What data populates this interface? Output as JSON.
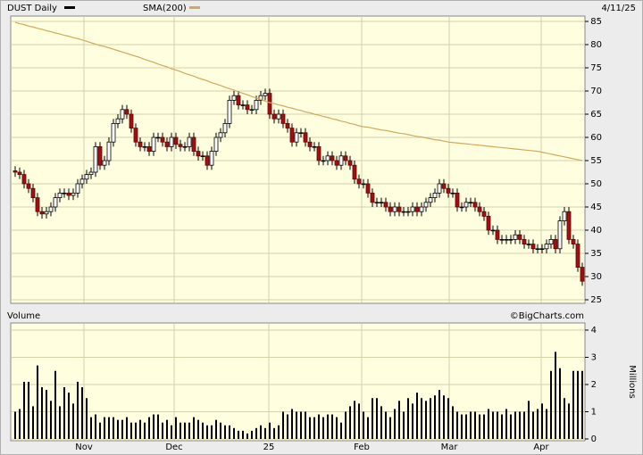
{
  "chart_data": [
    {
      "type": "candlestick",
      "title": "DUST Daily",
      "date_label": "4/11/25",
      "categories": [
        null,
        null,
        null,
        null,
        null,
        null,
        null,
        null,
        null,
        null,
        null,
        null,
        null,
        null,
        null,
        null,
        null,
        null,
        null,
        null,
        null,
        null,
        null,
        null,
        null,
        null,
        null,
        null,
        null,
        null,
        null,
        null,
        null,
        null,
        null,
        null,
        null,
        null,
        null,
        null,
        null,
        null,
        null,
        null,
        null,
        null,
        null,
        null,
        null,
        null,
        null,
        null,
        null,
        null,
        null,
        null,
        null,
        null,
        null,
        null,
        null,
        null,
        null,
        null,
        null,
        null,
        null,
        null,
        null,
        null,
        null,
        null,
        null,
        null,
        null,
        null,
        null,
        null,
        null,
        null,
        null,
        null,
        null,
        null,
        null,
        null,
        null,
        null,
        null,
        null,
        null,
        null,
        null,
        null,
        null,
        null,
        null,
        null,
        null,
        null,
        null,
        null,
        null,
        null,
        null,
        null,
        null,
        null,
        null,
        null,
        null,
        null,
        null,
        null,
        null,
        null,
        null,
        null,
        null,
        null,
        null,
        null,
        null,
        null,
        null,
        null,
        null,
        null
      ],
      "xlim": [
        -1,
        127.6
      ],
      "ylim": [
        25,
        85
      ],
      "yticks": [
        25,
        30,
        35,
        40,
        45,
        50,
        55,
        60,
        65,
        70,
        75,
        80,
        85
      ],
      "grid": true,
      "up_color": "#ffffff",
      "down_color": "#a01010",
      "series": [
        {
          "name": "DUST Daily",
          "color": "#000000",
          "open": [
            52.8,
            52.5,
            52,
            50,
            49,
            47,
            44,
            43.5,
            44,
            45,
            47,
            48,
            48,
            47.5,
            48,
            50,
            51,
            52,
            52.5,
            58,
            54,
            55,
            59,
            63,
            64,
            66,
            65,
            62,
            59,
            58,
            58,
            57,
            60,
            60,
            59,
            58,
            60,
            58.5,
            58,
            58,
            60,
            57,
            56,
            56,
            54,
            57,
            60,
            61,
            63,
            68,
            69,
            67,
            67,
            66,
            66,
            68,
            69,
            69.5,
            65,
            64,
            65,
            63,
            62,
            59,
            61,
            61,
            59,
            58,
            58,
            55,
            55,
            56,
            55,
            54,
            56,
            55,
            54,
            51,
            50,
            50,
            48,
            46,
            46,
            46,
            45,
            44,
            45,
            44,
            44,
            44,
            45,
            44,
            45,
            46,
            47,
            48,
            50,
            49,
            48,
            48,
            45,
            45,
            46,
            46,
            45,
            44,
            43,
            40,
            40,
            38,
            38,
            38,
            38,
            39,
            38,
            37,
            37,
            36,
            36,
            36,
            37,
            38,
            36,
            42,
            44,
            38,
            37,
            32
          ],
          "high": [
            53.8,
            53.5,
            53,
            51,
            50,
            48,
            45,
            45,
            46,
            48,
            49,
            49,
            49,
            49,
            51,
            52,
            53,
            53.5,
            59,
            59,
            56,
            60,
            64,
            65,
            67,
            67,
            66,
            63,
            60,
            59,
            59,
            61,
            61,
            61,
            60,
            61,
            61,
            59.5,
            59,
            61,
            61,
            58,
            57,
            57,
            58,
            61,
            62,
            64,
            69,
            70,
            70,
            68,
            68,
            67,
            69,
            70,
            70.5,
            70.5,
            66,
            66,
            66,
            64,
            63,
            62,
            62,
            62,
            60,
            59,
            59,
            56,
            57,
            57,
            56,
            57,
            57,
            56,
            55,
            52,
            51,
            51,
            49,
            47,
            47,
            47,
            46,
            46,
            46,
            45,
            45,
            46,
            46,
            46,
            47,
            48,
            49,
            51,
            51,
            50,
            49,
            49,
            46,
            47,
            47,
            47,
            46,
            45,
            44,
            41,
            41,
            39,
            39,
            39,
            40,
            40,
            39,
            38,
            38,
            37,
            37,
            38,
            39,
            39,
            43,
            45,
            45,
            39,
            38,
            33
          ],
          "low": [
            51.5,
            51,
            49,
            48,
            46,
            43,
            42.5,
            42.5,
            43,
            44,
            46,
            47,
            46.5,
            46.5,
            47,
            49,
            50,
            51,
            51.5,
            53,
            53,
            54,
            58,
            62,
            63,
            64,
            61,
            58,
            57,
            57,
            56,
            56,
            59,
            58,
            57,
            57,
            57.5,
            57,
            57,
            57,
            56,
            55,
            55,
            53,
            53,
            56,
            59,
            60,
            62,
            67,
            66,
            66,
            65,
            65,
            65,
            67,
            68,
            64,
            63,
            63,
            62,
            61,
            58,
            58,
            60,
            58,
            57,
            57,
            54,
            54,
            54,
            54,
            53,
            53,
            54,
            53,
            50,
            49,
            49,
            47,
            45,
            45,
            45,
            44,
            43,
            43,
            43,
            43,
            43,
            43,
            43,
            43,
            44,
            45,
            46,
            47,
            48,
            47,
            47,
            44,
            44,
            44,
            45,
            44,
            43,
            42,
            39,
            39,
            37,
            37,
            37,
            37,
            37,
            37,
            36,
            36,
            35,
            35,
            35,
            35,
            36,
            35,
            35,
            41,
            37,
            36,
            31,
            28
          ],
          "close": [
            52.5,
            52,
            50,
            49,
            47,
            44,
            43.5,
            44,
            45,
            47,
            48,
            48,
            47.5,
            48,
            50,
            51,
            52,
            52.5,
            58,
            54,
            55,
            59,
            63,
            64,
            66,
            65,
            62,
            59,
            58,
            58,
            57,
            60,
            60,
            59,
            58,
            60,
            58.5,
            58,
            58,
            60,
            57,
            56,
            56,
            54,
            57,
            60,
            61,
            63,
            68,
            69,
            67,
            67,
            66,
            66,
            68,
            69,
            69.5,
            65,
            64,
            65,
            63,
            62,
            59,
            61,
            61,
            59,
            58,
            58,
            55,
            55,
            56,
            55,
            54,
            56,
            55,
            54,
            51,
            50,
            50,
            48,
            46,
            46,
            46,
            45,
            44,
            45,
            44,
            44,
            44,
            45,
            44,
            45,
            46,
            47,
            48,
            50,
            49,
            48,
            48,
            45,
            45,
            46,
            46,
            45,
            44,
            43,
            40,
            40,
            38,
            38,
            38,
            38,
            39,
            38,
            37,
            37,
            36,
            36,
            36,
            37,
            38,
            36,
            42,
            44,
            38,
            37,
            32,
            29
          ]
        },
        {
          "name": "SMA(200)",
          "color": "#d4a85a",
          "type": "line",
          "values": [
            84.8,
            84.5,
            84.3,
            84.0,
            83.8,
            83.5,
            83.3,
            83.0,
            82.8,
            82.5,
            82.3,
            82.0,
            81.8,
            81.5,
            81.3,
            81.0,
            80.7,
            80.4,
            80.1,
            79.8,
            79.6,
            79.3,
            79.0,
            78.7,
            78.4,
            78.1,
            77.8,
            77.5,
            77.2,
            76.8,
            76.5,
            76.2,
            75.8,
            75.5,
            75.2,
            74.8,
            74.5,
            74.2,
            73.8,
            73.5,
            73.2,
            72.8,
            72.5,
            72.2,
            71.8,
            71.5,
            71.2,
            70.8,
            70.5,
            70.2,
            69.8,
            69.5,
            69.2,
            68.8,
            68.5,
            68.2,
            67.8,
            67.5,
            67.3,
            67.0,
            66.8,
            66.5,
            66.3,
            66.0,
            65.8,
            65.5,
            65.3,
            65.0,
            64.8,
            64.5,
            64.3,
            64.0,
            63.8,
            63.5,
            63.3,
            63.0,
            62.8,
            62.5,
            62.3,
            62.2,
            62.0,
            61.8,
            61.6,
            61.5,
            61.3,
            61.1,
            60.9,
            60.8,
            60.6,
            60.4,
            60.2,
            60.1,
            59.9,
            59.7,
            59.5,
            59.4,
            59.2,
            59.0,
            58.9,
            58.8,
            58.7,
            58.6,
            58.5,
            58.4,
            58.3,
            58.2,
            58.1,
            58.0,
            57.9,
            57.8,
            57.7,
            57.6,
            57.5,
            57.4,
            57.3,
            57.2,
            57.1,
            57.0,
            56.8,
            56.6,
            56.4,
            56.2,
            56.0,
            55.8,
            55.6,
            55.4,
            55.2,
            55.0
          ]
        }
      ]
    },
    {
      "type": "bar",
      "title": "Volume",
      "credit": "©BigCharts.com",
      "ylabel": "Millions",
      "color": "#000000",
      "ylim": [
        0,
        4
      ],
      "yticks": [
        0,
        1,
        2,
        3,
        4
      ],
      "grid": true,
      "xticks": [
        {
          "value": 15.4,
          "label": "Nov"
        },
        {
          "value": 35.6,
          "label": "Dec"
        },
        {
          "value": 56.8,
          "label": "25"
        },
        {
          "value": 77.6,
          "label": "Feb"
        },
        {
          "value": 97.2,
          "label": "Mar"
        },
        {
          "value": 117.8,
          "label": "Apr"
        }
      ],
      "values": [
        1.0,
        1.1,
        2.1,
        2.1,
        1.2,
        2.7,
        1.9,
        1.8,
        1.4,
        2.5,
        1.2,
        1.9,
        1.7,
        1.3,
        2.1,
        1.9,
        1.5,
        0.8,
        0.9,
        0.6,
        0.8,
        0.8,
        0.8,
        0.7,
        0.7,
        0.8,
        0.6,
        0.6,
        0.7,
        0.6,
        0.8,
        0.9,
        0.9,
        0.6,
        0.7,
        0.5,
        0.8,
        0.6,
        0.6,
        0.6,
        0.8,
        0.7,
        0.6,
        0.5,
        0.5,
        0.7,
        0.6,
        0.5,
        0.5,
        0.4,
        0.3,
        0.3,
        0.2,
        0.3,
        0.4,
        0.5,
        0.4,
        0.6,
        0.4,
        0.5,
        1.0,
        0.9,
        1.1,
        1.0,
        1.0,
        1.0,
        0.8,
        0.8,
        0.9,
        0.8,
        0.9,
        0.9,
        0.8,
        0.6,
        1.0,
        1.2,
        1.4,
        1.3,
        1.0,
        0.8,
        1.5,
        1.5,
        1.2,
        1.0,
        0.8,
        1.1,
        1.4,
        1.0,
        1.5,
        1.3,
        1.7,
        1.5,
        1.4,
        1.5,
        1.6,
        1.8,
        1.6,
        1.5,
        1.2,
        1.0,
        0.9,
        0.9,
        1.0,
        1.0,
        0.9,
        0.9,
        1.1,
        1.0,
        1.0,
        0.9,
        1.1,
        0.9,
        1.0,
        1.0,
        1.0,
        1.4,
        1.0,
        1.1,
        1.3,
        1.1,
        2.5,
        3.2,
        2.6,
        1.5,
        1.3,
        2.5,
        2.5,
        2.5
      ]
    }
  ]
}
